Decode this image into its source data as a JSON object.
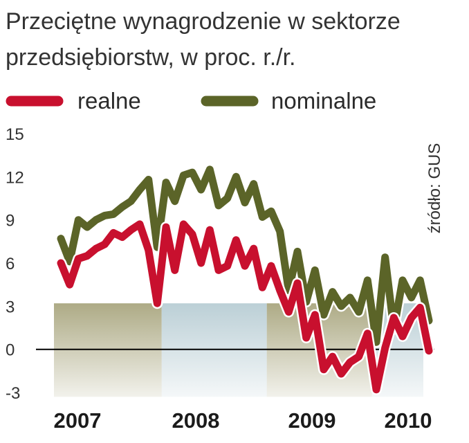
{
  "title_line1": "Przeciętne wynagrodzenie w sektorze",
  "title_line2": "przedsiębiorstw, w proc. r./r.",
  "source": "źródło: GUS",
  "colors": {
    "realne": "#c8102e",
    "nominalne": "#5b6428",
    "year_band_odd": "#a9a67f",
    "year_band_even": "#b8cdd4",
    "zero_line": "#000000"
  },
  "chart_data": {
    "type": "line",
    "title": "Przeciętne wynagrodzenie w sektorze przedsiębiorstw, w proc. r./r.",
    "xlabel": "",
    "ylabel": "",
    "ylim": [
      -3,
      15
    ],
    "yticks": [
      15,
      12,
      9,
      6,
      3,
      0,
      -3
    ],
    "ytick_labels": [
      "15",
      "12",
      "9",
      "6",
      "3",
      "0",
      "-3"
    ],
    "year_labels": [
      "2007",
      "2008",
      "2009",
      "2010"
    ],
    "grid": false,
    "legend_position": "top",
    "x": [
      "2007-01",
      "2007-02",
      "2007-03",
      "2007-04",
      "2007-05",
      "2007-06",
      "2007-07",
      "2007-08",
      "2007-09",
      "2007-10",
      "2007-11",
      "2007-12",
      "2008-01",
      "2008-02",
      "2008-03",
      "2008-04",
      "2008-05",
      "2008-06",
      "2008-07",
      "2008-08",
      "2008-09",
      "2008-10",
      "2008-11",
      "2008-12",
      "2009-01",
      "2009-02",
      "2009-03",
      "2009-04",
      "2009-05",
      "2009-06",
      "2009-07",
      "2009-08",
      "2009-09",
      "2009-10",
      "2009-11",
      "2009-12",
      "2010-01",
      "2010-02",
      "2010-03",
      "2010-04",
      "2010-05",
      "2010-06",
      "2010-07"
    ],
    "series": [
      {
        "name": "realne",
        "values": [
          6.0,
          4.5,
          6.3,
          6.5,
          7.0,
          7.3,
          8.1,
          7.8,
          8.3,
          8.7,
          6.9,
          3.2,
          8.5,
          5.5,
          8.7,
          8.0,
          6.0,
          8.3,
          5.5,
          5.8,
          7.6,
          5.8,
          7.0,
          4.3,
          5.8,
          4.1,
          2.6,
          4.6,
          0.8,
          2.4,
          -1.4,
          -0.5,
          -1.7,
          -0.9,
          -0.5,
          1.1,
          -2.8,
          0.1,
          2.2,
          0.9,
          2.2,
          2.9,
          -0.1
        ]
      },
      {
        "name": "nominalne",
        "values": [
          7.7,
          6.1,
          9.0,
          8.5,
          9.0,
          9.3,
          9.4,
          9.9,
          10.3,
          11.1,
          11.8,
          7.1,
          11.6,
          10.3,
          12.1,
          12.3,
          11.1,
          12.5,
          10.0,
          10.5,
          12.0,
          10.2,
          11.5,
          9.2,
          9.6,
          8.2,
          4.1,
          6.8,
          3.3,
          5.5,
          2.4,
          4.0,
          3.0,
          3.6,
          2.6,
          4.8,
          0.5,
          6.4,
          1.4,
          4.8,
          3.6,
          4.8,
          2.0
        ]
      }
    ]
  }
}
